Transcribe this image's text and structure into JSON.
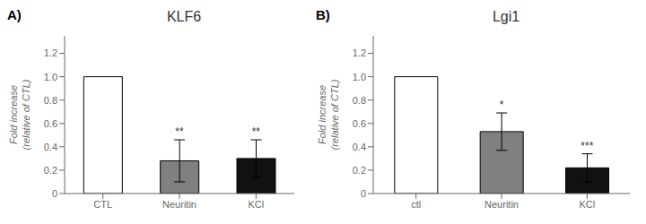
{
  "chart_data": [
    {
      "type": "bar",
      "title": "KLF6",
      "categories": [
        "CTL",
        "Neuritin",
        "KCl"
      ],
      "values": [
        1.0,
        0.28,
        0.3
      ],
      "errors": [
        0.0,
        0.18,
        0.16
      ],
      "colors": [
        "white",
        "#808080",
        "#111111"
      ],
      "ylabel": "Fold increase\n(relative of CTL)",
      "ylim": [
        0,
        1.35
      ],
      "yticks": [
        0,
        0.2,
        0.4,
        0.6,
        0.8,
        {
          "value": 1.0,
          "label": "1.0"
        },
        1.2
      ],
      "grid": false,
      "annotations": [
        {
          "text": "A)"
        },
        {
          "text": "**",
          "category": "Neuritin"
        },
        {
          "text": "**",
          "category": "KCl"
        }
      ]
    },
    {
      "type": "bar",
      "title": "Lgi1",
      "categories": [
        "ctl",
        "Neuritin",
        "KCl"
      ],
      "values": [
        1.0,
        0.53,
        0.22
      ],
      "errors": [
        0.0,
        0.16,
        0.12
      ],
      "colors": [
        "white",
        "#808080",
        "#111111"
      ],
      "ylabel": "Fold increase\n(relative of CTL)",
      "ylim": [
        0,
        1.35
      ],
      "yticks": [
        0,
        0.2,
        0.4,
        0.6,
        0.8,
        {
          "value": 1.0,
          "label": "1.0"
        },
        1.2
      ],
      "grid": false,
      "annotations": [
        {
          "text": "B)"
        },
        {
          "text": "*",
          "category": "Neuritin"
        },
        {
          "text": "***",
          "category": "KCl"
        }
      ]
    }
  ]
}
